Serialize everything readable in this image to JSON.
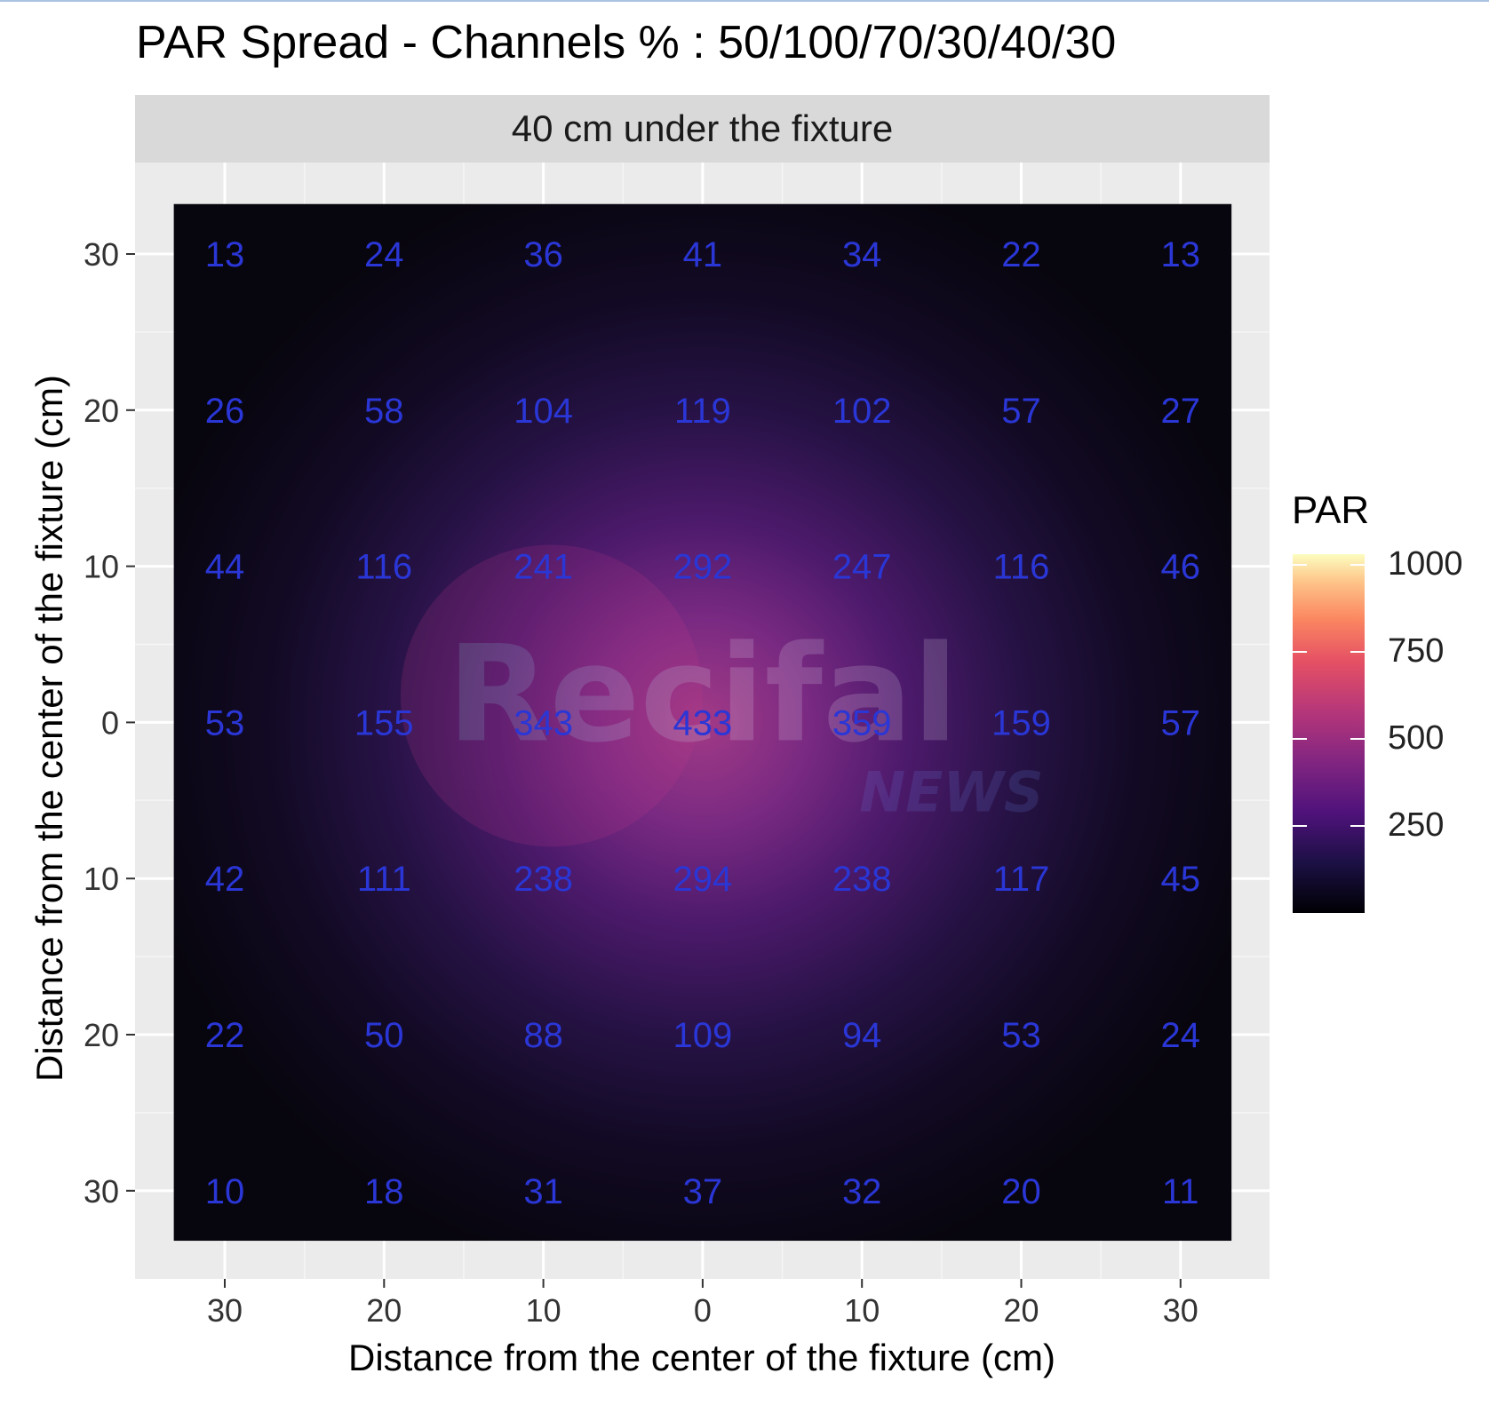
{
  "title": "PAR Spread - Channels % : 50/100/70/30/40/30",
  "facet_label": "40 cm under the fixture",
  "watermark": {
    "brand": "Recifal",
    "sub": "NEWS"
  },
  "legend": {
    "title": "PAR",
    "labels": [
      "1000",
      "750",
      "500",
      "250"
    ],
    "values": [
      1000,
      750,
      500,
      250
    ],
    "range": [
      0,
      1030
    ],
    "palette": "magma"
  },
  "colors": {
    "label_color": "#2a36d6",
    "panel_bg": "#ebebeb",
    "strip_bg": "#d9d9d9"
  },
  "chart_data": {
    "type": "heatmap",
    "title": "PAR Spread - Channels % : 50/100/70/30/40/30",
    "facet": "40 cm under the fixture",
    "xlabel": "Distance from the center of the fixture (cm)",
    "ylabel": "Distance from the center of the fixture (cm)",
    "x_ticks": [
      "30",
      "20",
      "10",
      "0",
      "10",
      "20",
      "30"
    ],
    "y_ticks": [
      "30",
      "20",
      "10",
      "0",
      "10",
      "20",
      "30"
    ],
    "x": [
      -30,
      -20,
      -10,
      0,
      10,
      20,
      30
    ],
    "y": [
      30,
      20,
      10,
      0,
      -10,
      -20,
      -30
    ],
    "xlim": [
      -35,
      35
    ],
    "ylim": [
      -35,
      35
    ],
    "grid": true,
    "legend_position": "right",
    "values": [
      [
        13,
        24,
        36,
        41,
        34,
        22,
        13
      ],
      [
        26,
        58,
        104,
        119,
        102,
        57,
        27
      ],
      [
        44,
        116,
        241,
        292,
        247,
        116,
        46
      ],
      [
        53,
        155,
        343,
        433,
        359,
        159,
        57
      ],
      [
        42,
        111,
        238,
        294,
        238,
        117,
        45
      ],
      [
        22,
        50,
        88,
        109,
        94,
        53,
        24
      ],
      [
        10,
        18,
        31,
        37,
        32,
        20,
        11
      ]
    ]
  }
}
